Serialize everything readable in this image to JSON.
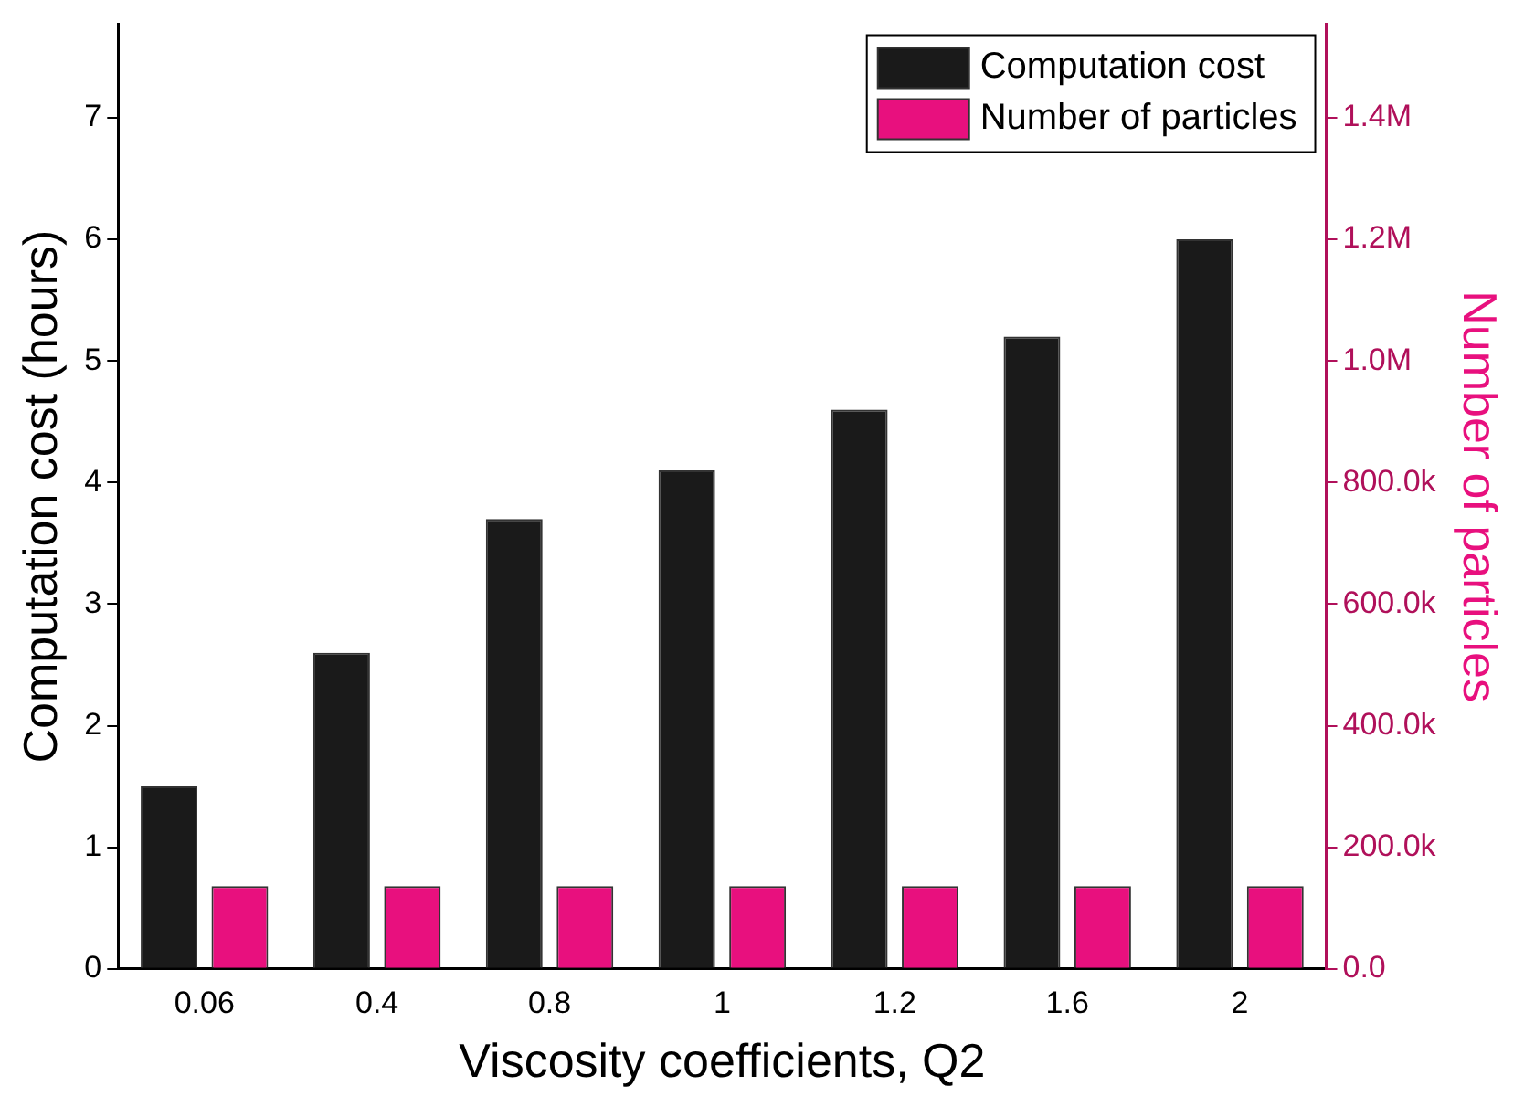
{
  "chart_data": {
    "type": "bar",
    "xlabel": "Viscosity coefficients, Q2",
    "ylabel": "Computation cost (hours)",
    "y2label": "Number of particles",
    "categories": [
      "0.06",
      "0.4",
      "0.8",
      "1",
      "1.2",
      "1.6",
      "2"
    ],
    "series": [
      {
        "name": "Computation cost",
        "color": "#1a1a1a",
        "values": [
          1.5,
          2.6,
          3.7,
          4.1,
          4.6,
          5.2,
          6.0
        ]
      },
      {
        "name": "Number of particles",
        "color": "#e8107e",
        "axis": "y2",
        "values": [
          136000,
          136000,
          136000,
          136000,
          136000,
          136000,
          136000
        ]
      }
    ],
    "ylim": [
      0,
      7.77
    ],
    "yticks": [
      0,
      1,
      2,
      3,
      4,
      5,
      6,
      7
    ],
    "y2lim": [
      0,
      1554000
    ],
    "y2ticks": [
      {
        "value": 0,
        "label": "0.0"
      },
      {
        "value": 200000,
        "label": "200.0k"
      },
      {
        "value": 400000,
        "label": "400.0k"
      },
      {
        "value": 600000,
        "label": "600.0k"
      },
      {
        "value": 800000,
        "label": "800.0k"
      },
      {
        "value": 1000000,
        "label": "1.0M"
      },
      {
        "value": 1200000,
        "label": "1.2M"
      },
      {
        "value": 1400000,
        "label": "1.4M"
      }
    ],
    "grid": false,
    "legend": "top right"
  }
}
